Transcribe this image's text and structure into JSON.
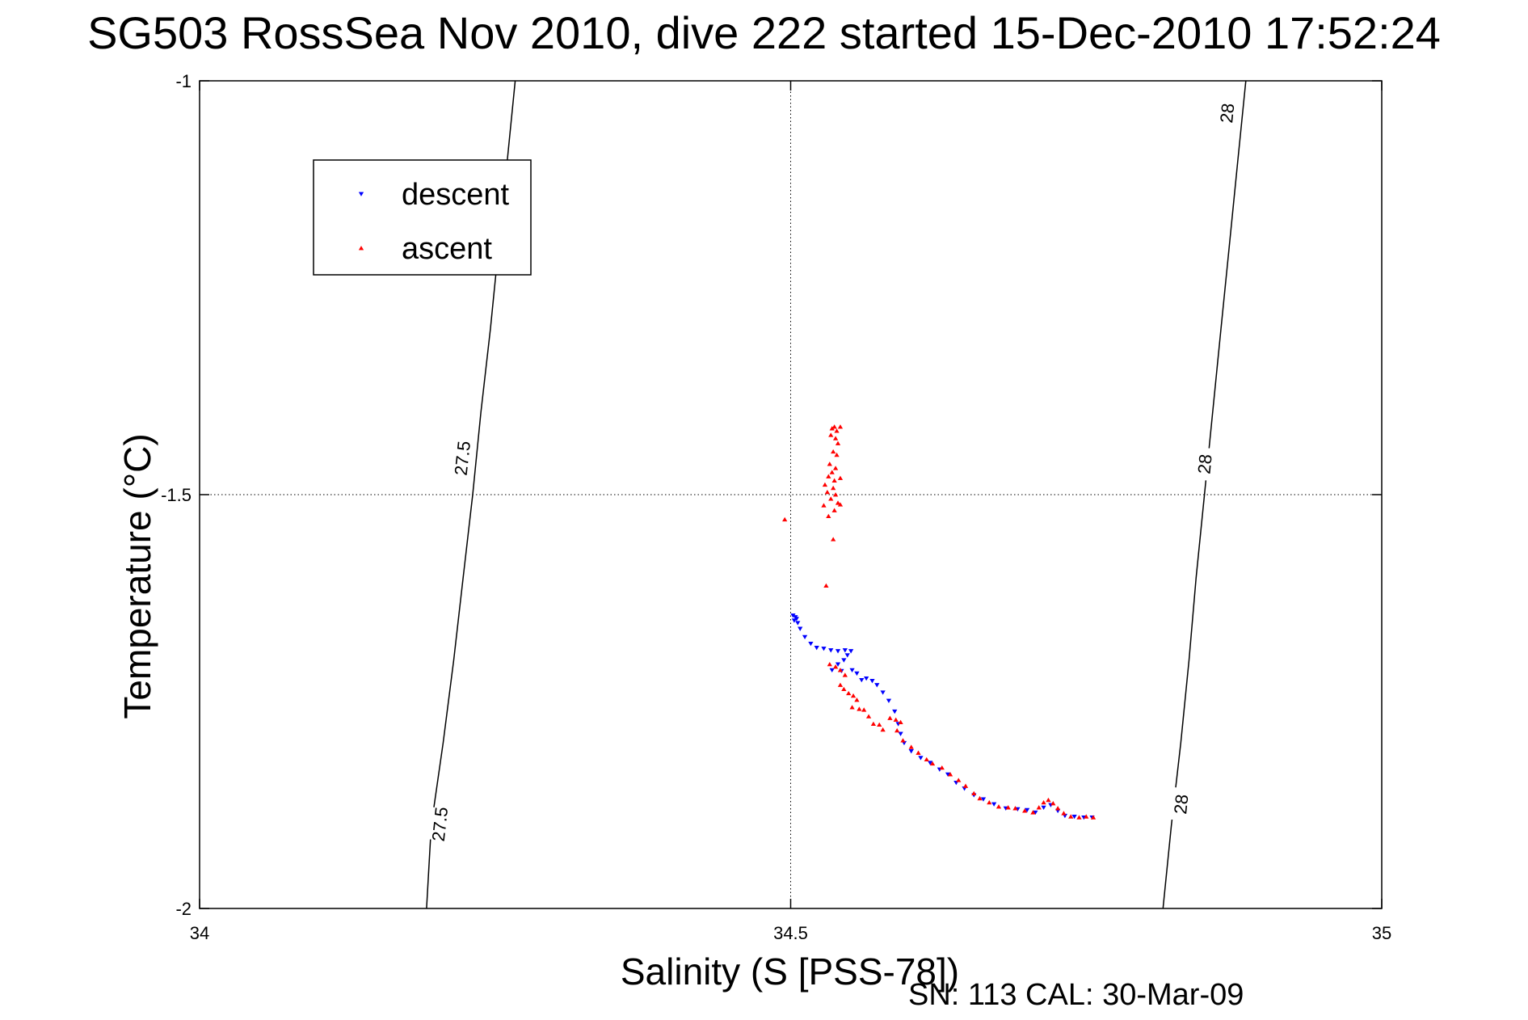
{
  "title": "SG503 RossSea Nov 2010, dive 222 started 15-Dec-2010 17:52:24",
  "footer": "SN: 113  CAL: 30-Mar-09",
  "colors": {
    "descent": "#0000ff",
    "ascent": "#ff0000",
    "axis": "#000000",
    "grid": "#000000"
  },
  "chart_data": {
    "type": "scatter",
    "xlabel": "Salinity (S [PSS-78])",
    "ylabel": "Temperature (°C)",
    "xlim": [
      34,
      35
    ],
    "ylim": [
      -2,
      -1
    ],
    "xticks": [
      34,
      34.5,
      35
    ],
    "xtick_labels": [
      "34",
      "34.5",
      "35"
    ],
    "yticks": [
      -2,
      -1.5,
      -1
    ],
    "ytick_labels": [
      "-2",
      "-1.5",
      "-1"
    ],
    "grid": "dotted, at 34.5 and -1.5",
    "legend": {
      "position": "top-left",
      "entries": [
        "descent",
        "ascent"
      ]
    },
    "contours": [
      {
        "label": "27.5",
        "points": [
          [
            34.192,
            -2.0
          ],
          [
            34.196,
            -1.9
          ],
          [
            34.206,
            -1.8
          ],
          [
            34.215,
            -1.7
          ],
          [
            34.223,
            -1.6
          ],
          [
            34.231,
            -1.5
          ],
          [
            34.238,
            -1.4
          ],
          [
            34.246,
            -1.3
          ],
          [
            34.253,
            -1.2
          ],
          [
            34.26,
            -1.1
          ],
          [
            34.267,
            -1.0
          ]
        ],
        "label_positions": [
          [
            34.222,
            -1.456
          ],
          [
            34.203,
            -1.898
          ]
        ]
      },
      {
        "label": "28",
        "points": [
          [
            34.815,
            -2.0
          ],
          [
            34.822,
            -1.9
          ],
          [
            34.83,
            -1.8
          ],
          [
            34.837,
            -1.7
          ],
          [
            34.843,
            -1.6
          ],
          [
            34.85,
            -1.5
          ],
          [
            34.857,
            -1.4
          ],
          [
            34.864,
            -1.3
          ],
          [
            34.871,
            -1.2
          ],
          [
            34.878,
            -1.1
          ],
          [
            34.885,
            -1.0
          ]
        ],
        "label_positions": [
          [
            34.869,
            -1.039
          ],
          [
            34.85,
            -1.463
          ],
          [
            34.83,
            -1.874
          ]
        ]
      }
    ],
    "series": [
      {
        "name": "descent",
        "marker": "triangle-down",
        "points": [
          [
            34.502,
            -1.646
          ],
          [
            34.504,
            -1.648
          ],
          [
            34.505,
            -1.65
          ],
          [
            34.503,
            -1.652
          ],
          [
            34.506,
            -1.655
          ],
          [
            34.508,
            -1.662
          ],
          [
            34.512,
            -1.672
          ],
          [
            34.517,
            -1.68
          ],
          [
            34.522,
            -1.685
          ],
          [
            34.528,
            -1.686
          ],
          [
            34.534,
            -1.688
          ],
          [
            34.54,
            -1.689
          ],
          [
            34.546,
            -1.688
          ],
          [
            34.551,
            -1.689
          ],
          [
            34.548,
            -1.694
          ],
          [
            34.545,
            -1.7
          ],
          [
            34.54,
            -1.705
          ],
          [
            34.535,
            -1.712
          ],
          [
            34.543,
            -1.713
          ],
          [
            34.552,
            -1.712
          ],
          [
            34.556,
            -1.716
          ],
          [
            34.56,
            -1.724
          ],
          [
            34.564,
            -1.722
          ],
          [
            34.569,
            -1.725
          ],
          [
            34.573,
            -1.73
          ],
          [
            34.578,
            -1.739
          ],
          [
            34.583,
            -1.749
          ],
          [
            34.588,
            -1.762
          ],
          [
            34.591,
            -1.777
          ],
          [
            34.593,
            -1.789
          ],
          [
            34.596,
            -1.8
          ],
          [
            34.602,
            -1.81
          ],
          [
            34.61,
            -1.818
          ],
          [
            34.618,
            -1.824
          ],
          [
            34.626,
            -1.832
          ],
          [
            34.633,
            -1.838
          ],
          [
            34.64,
            -1.848
          ],
          [
            34.647,
            -1.855
          ],
          [
            34.655,
            -1.863
          ],
          [
            34.663,
            -1.868
          ],
          [
            34.672,
            -1.874
          ],
          [
            34.682,
            -1.879
          ],
          [
            34.692,
            -1.88
          ],
          [
            34.7,
            -1.881
          ],
          [
            34.707,
            -1.884
          ],
          [
            34.714,
            -1.878
          ],
          [
            34.72,
            -1.875
          ],
          [
            34.726,
            -1.882
          ],
          [
            34.732,
            -1.888
          ],
          [
            34.74,
            -1.889
          ],
          [
            34.748,
            -1.89
          ],
          [
            34.755,
            -1.89
          ]
        ]
      },
      {
        "name": "ascent",
        "marker": "triangle-up",
        "points": [
          [
            34.535,
            -1.42
          ],
          [
            34.537,
            -1.418
          ],
          [
            34.539,
            -1.423
          ],
          [
            34.542,
            -1.418
          ],
          [
            34.534,
            -1.428
          ],
          [
            34.538,
            -1.432
          ],
          [
            34.54,
            -1.438
          ],
          [
            34.536,
            -1.448
          ],
          [
            34.539,
            -1.452
          ],
          [
            34.533,
            -1.463
          ],
          [
            34.538,
            -1.468
          ],
          [
            34.535,
            -1.473
          ],
          [
            34.532,
            -1.478
          ],
          [
            34.537,
            -1.483
          ],
          [
            34.542,
            -1.48
          ],
          [
            34.529,
            -1.488
          ],
          [
            34.536,
            -1.492
          ],
          [
            34.531,
            -1.497
          ],
          [
            34.538,
            -1.5
          ],
          [
            34.534,
            -1.505
          ],
          [
            34.54,
            -1.51
          ],
          [
            34.542,
            -1.512
          ],
          [
            34.528,
            -1.513
          ],
          [
            34.537,
            -1.519
          ],
          [
            34.532,
            -1.526
          ],
          [
            34.536,
            -1.554
          ],
          [
            34.495,
            -1.53
          ],
          [
            34.53,
            -1.61
          ],
          [
            34.533,
            -1.705
          ],
          [
            34.538,
            -1.708
          ],
          [
            34.542,
            -1.712
          ],
          [
            34.546,
            -1.718
          ],
          [
            34.542,
            -1.73
          ],
          [
            34.545,
            -1.735
          ],
          [
            34.549,
            -1.74
          ],
          [
            34.553,
            -1.743
          ],
          [
            34.556,
            -1.748
          ],
          [
            34.552,
            -1.757
          ],
          [
            34.558,
            -1.759
          ],
          [
            34.562,
            -1.76
          ],
          [
            34.566,
            -1.768
          ],
          [
            34.57,
            -1.777
          ],
          [
            34.575,
            -1.778
          ],
          [
            34.578,
            -1.784
          ],
          [
            34.584,
            -1.77
          ],
          [
            34.589,
            -1.772
          ],
          [
            34.593,
            -1.775
          ],
          [
            34.59,
            -1.785
          ],
          [
            34.595,
            -1.797
          ],
          [
            34.602,
            -1.805
          ],
          [
            34.608,
            -1.812
          ],
          [
            34.615,
            -1.82
          ],
          [
            34.62,
            -1.825
          ],
          [
            34.628,
            -1.83
          ],
          [
            34.635,
            -1.838
          ],
          [
            34.642,
            -1.845
          ],
          [
            34.648,
            -1.852
          ],
          [
            34.655,
            -1.861
          ],
          [
            34.66,
            -1.867
          ],
          [
            34.668,
            -1.872
          ],
          [
            34.676,
            -1.877
          ],
          [
            34.684,
            -1.878
          ],
          [
            34.69,
            -1.879
          ],
          [
            34.698,
            -1.882
          ],
          [
            34.705,
            -1.884
          ],
          [
            34.71,
            -1.878
          ],
          [
            34.714,
            -1.872
          ],
          [
            34.718,
            -1.869
          ],
          [
            34.722,
            -1.873
          ],
          [
            34.726,
            -1.879
          ],
          [
            34.731,
            -1.885
          ],
          [
            34.737,
            -1.889
          ],
          [
            34.744,
            -1.89
          ],
          [
            34.75,
            -1.889
          ],
          [
            34.756,
            -1.89
          ]
        ]
      }
    ]
  }
}
